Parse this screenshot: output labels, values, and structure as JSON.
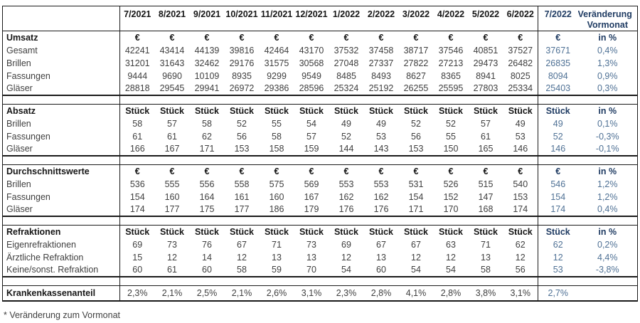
{
  "report": {
    "months": [
      "7/2021",
      "8/2021",
      "9/2021",
      "10/2021",
      "11/2021",
      "12/2021",
      "1/2022",
      "2/2022",
      "3/2022",
      "4/2022",
      "5/2022",
      "6/2022"
    ],
    "current_month": "7/2022",
    "change_header_line1": "Veränderung",
    "change_header_line2": "Vormonat",
    "change_unit": "in %",
    "sections": [
      {
        "label": "Umsatz",
        "unit": "€",
        "rows": [
          {
            "label": "Gesamt",
            "values": [
              "42241",
              "43414",
              "44139",
              "39816",
              "42464",
              "43170",
              "37532",
              "37458",
              "38717",
              "37546",
              "40851",
              "37527"
            ],
            "current": "37671",
            "change": "0,4%"
          },
          {
            "label": "Brillen",
            "values": [
              "31201",
              "31643",
              "32462",
              "29176",
              "31575",
              "30568",
              "27048",
              "27337",
              "27822",
              "27213",
              "29473",
              "26482"
            ],
            "current": "26835",
            "change": "1,3%"
          },
          {
            "label": "Fassungen",
            "values": [
              "9444",
              "9690",
              "10109",
              "8935",
              "9299",
              "9549",
              "8485",
              "8493",
              "8627",
              "8365",
              "8941",
              "8025"
            ],
            "current": "8094",
            "change": "0,9%"
          },
          {
            "label": "Gläser",
            "values": [
              "28818",
              "29545",
              "29941",
              "26972",
              "29386",
              "28596",
              "25324",
              "25192",
              "26255",
              "25595",
              "27803",
              "25334"
            ],
            "current": "25403",
            "change": "0,3%"
          }
        ]
      },
      {
        "label": "Absatz",
        "unit": "Stück",
        "rows": [
          {
            "label": "Brillen",
            "values": [
              "58",
              "57",
              "58",
              "52",
              "55",
              "54",
              "49",
              "49",
              "52",
              "52",
              "57",
              "49"
            ],
            "current": "49",
            "change": "0,1%"
          },
          {
            "label": "Fassungen",
            "values": [
              "61",
              "61",
              "62",
              "56",
              "58",
              "57",
              "52",
              "53",
              "56",
              "55",
              "61",
              "53"
            ],
            "current": "52",
            "change": "-0,3%"
          },
          {
            "label": "Gläser",
            "values": [
              "166",
              "167",
              "171",
              "153",
              "158",
              "159",
              "144",
              "143",
              "153",
              "150",
              "165",
              "146"
            ],
            "current": "146",
            "change": "-0,1%"
          }
        ]
      },
      {
        "label": "Durchschnittswerte",
        "unit": "€",
        "rows": [
          {
            "label": "Brillen",
            "values": [
              "536",
              "555",
              "556",
              "558",
              "575",
              "569",
              "553",
              "553",
              "531",
              "526",
              "515",
              "540"
            ],
            "current": "546",
            "change": "1,2%"
          },
          {
            "label": "Fassungen",
            "values": [
              "154",
              "160",
              "164",
              "161",
              "160",
              "167",
              "162",
              "162",
              "154",
              "152",
              "147",
              "153"
            ],
            "current": "154",
            "change": "1,2%"
          },
          {
            "label": "Gläser",
            "values": [
              "174",
              "177",
              "175",
              "177",
              "186",
              "179",
              "176",
              "176",
              "171",
              "170",
              "168",
              "174"
            ],
            "current": "174",
            "change": "0,4%"
          }
        ]
      },
      {
        "label": "Refraktionen",
        "unit": "Stück",
        "rows": [
          {
            "label": "Eigenrefraktionen",
            "values": [
              "69",
              "73",
              "76",
              "67",
              "71",
              "73",
              "69",
              "67",
              "67",
              "63",
              "71",
              "62"
            ],
            "current": "62",
            "change": "0,2%"
          },
          {
            "label": "Ärztliche Refraktion",
            "values": [
              "15",
              "12",
              "14",
              "12",
              "13",
              "13",
              "12",
              "13",
              "12",
              "12",
              "13",
              "12"
            ],
            "current": "12",
            "change": "4,4%"
          },
          {
            "label": "Keine/sonst. Refraktion",
            "values": [
              "60",
              "61",
              "60",
              "58",
              "59",
              "70",
              "54",
              "60",
              "54",
              "54",
              "58",
              "56"
            ],
            "current": "53",
            "change": "-3,8%"
          }
        ]
      }
    ],
    "footer_row": {
      "label": "Krankenkassenanteil",
      "values": [
        "2,3%",
        "2,1%",
        "2,5%",
        "2,1%",
        "2,6%",
        "3,1%",
        "2,3%",
        "2,8%",
        "4,1%",
        "2,8%",
        "3,8%",
        "3,1%"
      ],
      "current": "2,7%",
      "change": ""
    },
    "footnote": "* Veränderung zum Vormonat"
  },
  "colors": {
    "header_blue": "#203c63",
    "value_blue": "#4f7195",
    "text_dark": "#161616",
    "text_gray": "#3f3f3f",
    "border": "#1a1a1a"
  }
}
